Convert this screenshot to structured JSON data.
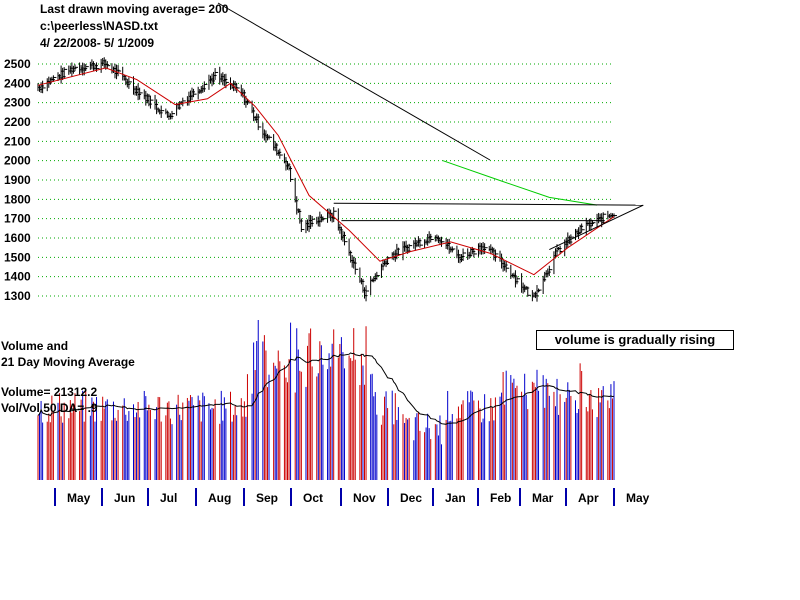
{
  "header": {
    "line1": "Last drawn moving average= 200",
    "line2": "c:\\peerless\\NASD.txt",
    "line3": " 4/ 22/2008- 5/ 1/2009"
  },
  "volume_panel": {
    "title1": "Volume and",
    "title2": "21 Day Moving Average",
    "volume_readout": "Volume= 21312.2",
    "ratio_readout": "Vol/Vol 50 DA= .9"
  },
  "annotation": "volume is gradually rising",
  "colors": {
    "price_bars": "#000000",
    "ma_short": "#cc0000",
    "ma_200": "#00cc00",
    "volume_up": "#cc0000",
    "volume_down": "#0000cc",
    "grid": "#00aa00"
  },
  "chart_data": [
    {
      "type": "ohlc",
      "title": "NASD",
      "y_ticks": [
        2500,
        2400,
        2300,
        2200,
        2100,
        2000,
        1900,
        1800,
        1700,
        1600,
        1500,
        1400,
        1300
      ],
      "ylim": [
        1250,
        2550
      ],
      "grid": true,
      "approx_close_path": [
        {
          "date": "2008-04-22",
          "value": 2380
        },
        {
          "date": "2008-05-15",
          "value": 2480
        },
        {
          "date": "2008-06-05",
          "value": 2500
        },
        {
          "date": "2008-06-20",
          "value": 2400
        },
        {
          "date": "2008-07-15",
          "value": 2230
        },
        {
          "date": "2008-07-25",
          "value": 2310
        },
        {
          "date": "2008-08-15",
          "value": 2440
        },
        {
          "date": "2008-09-01",
          "value": 2350
        },
        {
          "date": "2008-09-15",
          "value": 2150
        },
        {
          "date": "2008-10-01",
          "value": 1980
        },
        {
          "date": "2008-10-10",
          "value": 1650
        },
        {
          "date": "2008-10-20",
          "value": 1700
        },
        {
          "date": "2008-10-31",
          "value": 1720
        },
        {
          "date": "2008-11-20",
          "value": 1320
        },
        {
          "date": "2008-12-05",
          "value": 1500
        },
        {
          "date": "2008-12-20",
          "value": 1560
        },
        {
          "date": "2009-01-05",
          "value": 1620
        },
        {
          "date": "2009-01-20",
          "value": 1500
        },
        {
          "date": "2009-02-05",
          "value": 1560
        },
        {
          "date": "2009-02-20",
          "value": 1450
        },
        {
          "date": "2009-03-09",
          "value": 1290
        },
        {
          "date": "2009-03-25",
          "value": 1530
        },
        {
          "date": "2009-04-10",
          "value": 1650
        },
        {
          "date": "2009-05-01",
          "value": 1730
        }
      ],
      "ma_short_path": [
        {
          "date": "2008-04-22",
          "value": 2390
        },
        {
          "date": "2008-06-05",
          "value": 2480
        },
        {
          "date": "2008-06-25",
          "value": 2420
        },
        {
          "date": "2008-07-20",
          "value": 2290
        },
        {
          "date": "2008-08-10",
          "value": 2320
        },
        {
          "date": "2008-08-25",
          "value": 2400
        },
        {
          "date": "2008-09-10",
          "value": 2280
        },
        {
          "date": "2008-09-25",
          "value": 2130
        },
        {
          "date": "2008-10-15",
          "value": 1820
        },
        {
          "date": "2008-11-10",
          "value": 1640
        },
        {
          "date": "2008-11-30",
          "value": 1480
        },
        {
          "date": "2008-12-20",
          "value": 1530
        },
        {
          "date": "2009-01-15",
          "value": 1580
        },
        {
          "date": "2009-02-10",
          "value": 1520
        },
        {
          "date": "2009-03-10",
          "value": 1410
        },
        {
          "date": "2009-04-01",
          "value": 1550
        },
        {
          "date": "2009-05-01",
          "value": 1710
        }
      ],
      "ma_200_path": [
        {
          "date": "2009-01-10",
          "value": 2000
        },
        {
          "date": "2009-02-15",
          "value": 1900
        },
        {
          "date": "2009-03-20",
          "value": 1810
        },
        {
          "date": "2009-04-20",
          "value": 1770
        }
      ],
      "trendlines": [
        {
          "from": {
            "date": "2008-10-31",
            "value": 1780
          },
          "to": {
            "date": "2009-05-20",
            "value": 1770
          }
        },
        {
          "from": {
            "date": "2008-11-05",
            "value": 1690
          },
          "to": {
            "date": "2009-04-25",
            "value": 1690
          }
        },
        {
          "from": {
            "date": "2009-03-20",
            "value": 1540
          },
          "to": {
            "date": "2009-05-20",
            "value": 1770
          }
        }
      ]
    },
    {
      "type": "bar",
      "title": "Volume and 21 Day Moving Average",
      "x_labels": [
        "May",
        "Jun",
        "Jul",
        "Aug",
        "Sep",
        "Oct",
        "Nov",
        "Dec",
        "Jan",
        "Feb",
        "Mar",
        "Apr",
        "May"
      ]
    }
  ]
}
